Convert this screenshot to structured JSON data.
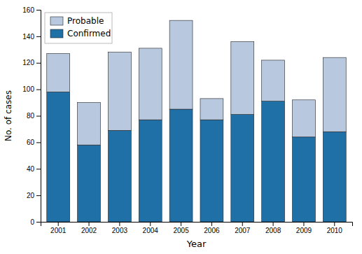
{
  "chart_data": {
    "type": "bar",
    "stacked": true,
    "categories": [
      "2001",
      "2002",
      "2003",
      "2004",
      "2005",
      "2006",
      "2007",
      "2008",
      "2009",
      "2010"
    ],
    "series": [
      {
        "name": "Confirmed",
        "color": "#2070a8",
        "values": [
          98,
          58,
          69,
          77,
          85,
          77,
          81,
          91,
          64,
          68
        ]
      },
      {
        "name": "Probable",
        "color": "#b8c8df",
        "values": [
          29,
          32,
          59,
          54,
          67,
          16,
          55,
          31,
          28,
          56
        ]
      }
    ],
    "xlabel": "Year",
    "ylabel": "No. of cases",
    "ylim": [
      0,
      160
    ],
    "yticks": [
      0,
      20,
      40,
      60,
      80,
      100,
      120,
      140,
      160
    ],
    "grid": false,
    "legend": "upper left"
  }
}
